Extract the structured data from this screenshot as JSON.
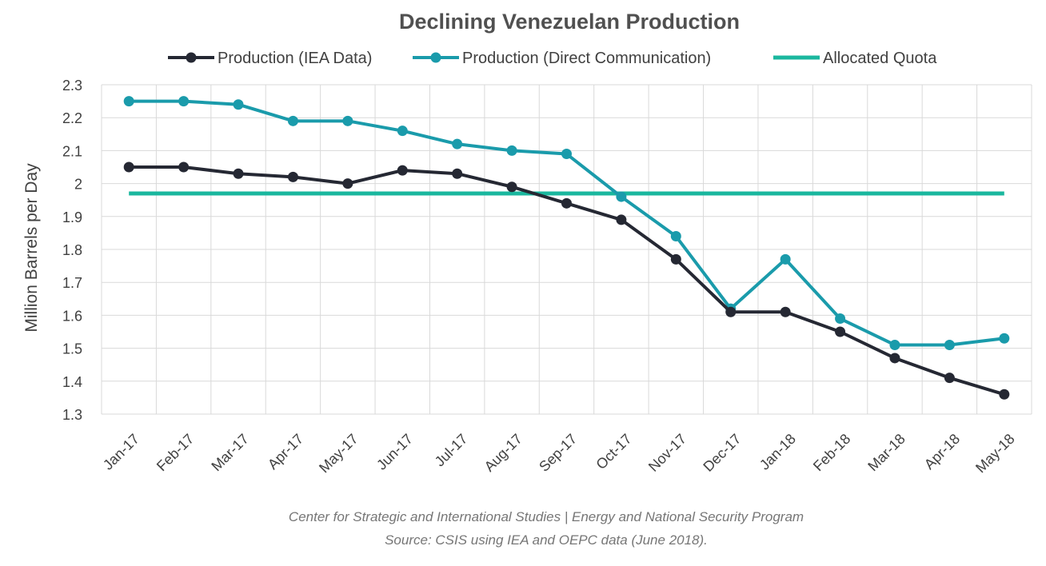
{
  "chart_data": {
    "type": "line",
    "title": "Declining Venezuelan Production",
    "xlabel": "",
    "ylabel": "Million Barrels per Day",
    "ylim": [
      1.3,
      2.3
    ],
    "yticks": [
      "1.3",
      "1.4",
      "1.5",
      "1.6",
      "1.7",
      "1.8",
      "1.9",
      "2",
      "2.1",
      "2.2",
      "2.3"
    ],
    "grid": true,
    "legend_position": "top",
    "categories": [
      "Jan-17",
      "Feb-17",
      "Mar-17",
      "Apr-17",
      "May-17",
      "Jun-17",
      "Jul-17",
      "Aug-17",
      "Sep-17",
      "Oct-17",
      "Nov-17",
      "Dec-17",
      "Jan-18",
      "Feb-18",
      "Mar-18",
      "Apr-18",
      "May-18"
    ],
    "series": [
      {
        "name": "Production (IEA Data)",
        "color": "#252833",
        "markers": true,
        "values": [
          2.05,
          2.05,
          2.03,
          2.02,
          2.0,
          2.04,
          2.03,
          1.99,
          1.94,
          1.89,
          1.77,
          1.61,
          1.61,
          1.55,
          1.47,
          1.41,
          1.36
        ]
      },
      {
        "name": "Production (Direct Communication)",
        "color": "#1a9bab",
        "markers": true,
        "values": [
          2.25,
          2.25,
          2.24,
          2.19,
          2.19,
          2.16,
          2.12,
          2.1,
          2.09,
          1.96,
          1.84,
          1.62,
          1.77,
          1.59,
          1.51,
          1.51,
          1.53
        ]
      },
      {
        "name": "Allocated Quota",
        "color": "#1ab79e",
        "markers": false,
        "values": [
          1.97,
          1.97,
          1.97,
          1.97,
          1.97,
          1.97,
          1.97,
          1.97,
          1.97,
          1.97,
          1.97,
          1.97,
          1.97,
          1.97,
          1.97,
          1.97,
          1.97
        ]
      }
    ]
  },
  "caption": {
    "line1": "Center for Strategic and International Studies | Energy and National Security Program",
    "line2": "Source: CSIS using IEA and OEPC data (June 2018)."
  }
}
